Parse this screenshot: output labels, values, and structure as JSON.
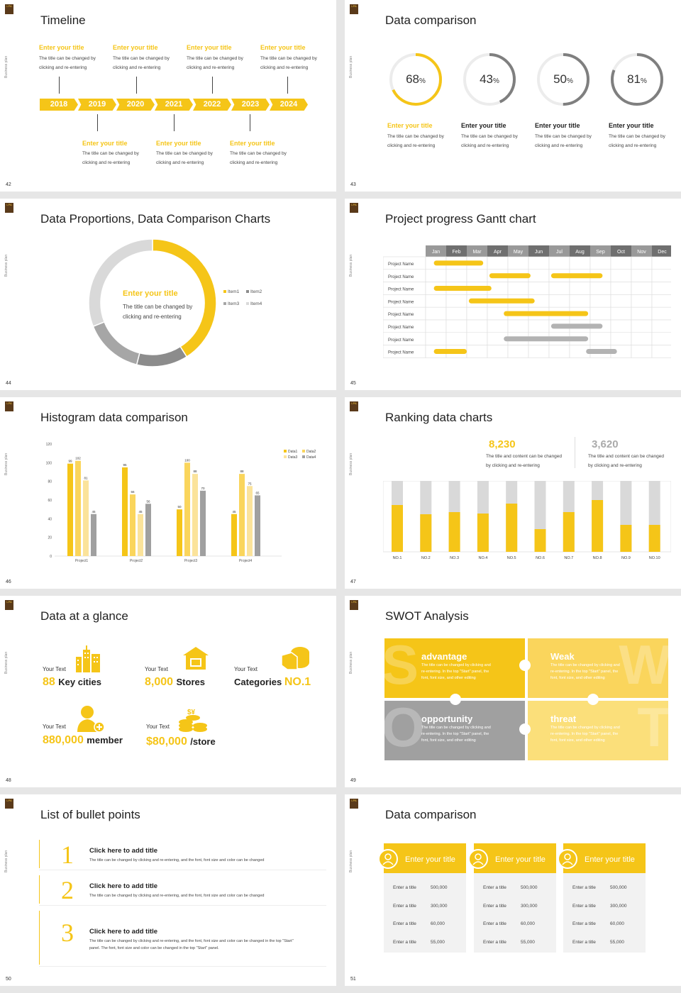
{
  "slides": [
    {
      "num": "42",
      "title": "Timeline"
    },
    {
      "num": "43",
      "title": "Data comparison"
    },
    {
      "num": "44",
      "title": "Data Proportions, Data Comparison Charts"
    },
    {
      "num": "45",
      "title": "Project progress Gantt chart"
    },
    {
      "num": "46",
      "title": "Histogram data comparison"
    },
    {
      "num": "47",
      "title": "Ranking data charts"
    },
    {
      "num": "48",
      "title": "Data at a glance"
    },
    {
      "num": "49",
      "title": "SWOT Analysis"
    },
    {
      "num": "50",
      "title": "List of bullet points"
    },
    {
      "num": "51",
      "title": "Data comparison"
    }
  ],
  "common": {
    "side_label": "Business plan",
    "logo": "LPA"
  },
  "timeline": {
    "years": [
      "2018",
      "2019",
      "2020",
      "2021",
      "2022",
      "2023",
      "2024"
    ],
    "item_title": "Enter your title",
    "item_text_1": "The title can be changed by",
    "item_text_2": "clicking and re-entering"
  },
  "rings": {
    "values": [
      "68",
      "43",
      "50",
      "81"
    ],
    "unit": "%",
    "titles": [
      "Enter your title",
      "Enter your title",
      "Enter your title",
      "Enter your title"
    ],
    "text_1": "The title can be changed by",
    "text_2": "clicking and re-entering"
  },
  "donut": {
    "title": "Enter your title",
    "text_1": "The title can be changed by",
    "text_2": "clicking and re-entering",
    "legend": [
      "Item1",
      "Item2",
      "Item3",
      "Item4"
    ]
  },
  "gantt": {
    "months": [
      "Jan",
      "Feb",
      "Mar",
      "Apr",
      "May",
      "Jun",
      "Jul",
      "Aug",
      "Sep",
      "Oct",
      "Nov",
      "Dec"
    ],
    "row_label": "Project Name"
  },
  "histogram": {
    "legend": [
      "Data1",
      "Data2",
      "Data3",
      "Data4"
    ]
  },
  "ranking": {
    "v1": "8,230",
    "v2": "3,620",
    "text_1": "The title and content can be changed",
    "text_2": "by clicking and re-entering",
    "labels": [
      "NO.1",
      "NO.2",
      "NO.3",
      "NO.4",
      "NO.5",
      "NO.6",
      "NO.7",
      "NO.8",
      "NO.9",
      "NO.10"
    ]
  },
  "glance": {
    "your_text": "Your Text",
    "i1_num": "88",
    "i1_unit": "Key cities",
    "i2_num": "8,000",
    "i2_unit": "Stores",
    "i3_pre": "Categories",
    "i3_num": "NO.1",
    "i4_num": "880,000",
    "i4_unit": "member",
    "i5_num": "$80,000",
    "i5_unit": "/store"
  },
  "swot": {
    "a": "advantage",
    "w": "Weak",
    "o": "opportunity",
    "t": "threat",
    "bl_s": "S",
    "bl_w": "W",
    "bl_o": "O",
    "bl_t": "T",
    "text_1": "The title can be changed by clicking and",
    "text_2": "re-entering. In the top \"Start\" panel, the",
    "text_3": "font, font size, and other editing"
  },
  "bullets": {
    "nums": [
      "1",
      "2",
      "3"
    ],
    "head": "Click here to add title",
    "text_1": "The title can be changed by clicking and re-entering, and the font, font size and color can be changed",
    "text_3a": "The title can be changed by clicking and re-entering, and the font, font size and color can be changed in the top \"Start\"",
    "text_3b": "panel. The font, font size and color can be changed in the top \"Start\" panel."
  },
  "cards": {
    "title": "Enter your title",
    "row_label": "Enter a title",
    "values": [
      "500,000",
      "300,000",
      "60,000",
      "55,000"
    ]
  },
  "chart_data": [
    {
      "type": "bar",
      "title": "Histogram data comparison",
      "categories": [
        "Project1",
        "Project2",
        "Project3",
        "Project4"
      ],
      "series": [
        {
          "name": "Data1",
          "values": [
            99,
            95,
            50,
            45
          ]
        },
        {
          "name": "Data2",
          "values": [
            102,
            66,
            100,
            88
          ]
        },
        {
          "name": "Data3",
          "values": [
            81,
            45,
            88,
            75
          ]
        },
        {
          "name": "Data4",
          "values": [
            45,
            56,
            70,
            65
          ]
        }
      ],
      "ylim": [
        0,
        120
      ],
      "yticks": [
        "0",
        "20",
        "40",
        "60",
        "80",
        "100",
        "120"
      ]
    },
    {
      "type": "pie",
      "title": "",
      "categories": [
        "Item1",
        "Item2",
        "Item3",
        "Item4"
      ],
      "values": [
        41,
        13,
        15,
        31
      ],
      "colors": [
        "#f5c518",
        "#8c8c8c",
        "#a6a6a6",
        "#d9d9d9"
      ]
    },
    {
      "type": "bar",
      "categories": [
        "NO.1",
        "NO.2",
        "NO.3",
        "NO.4",
        "NO.5",
        "NO.6",
        "NO.7",
        "NO.8",
        "NO.9",
        "NO.10"
      ],
      "values": [
        66,
        53,
        56,
        54,
        68,
        32,
        56,
        73,
        38,
        38
      ]
    },
    {
      "type": "bar",
      "categories": [
        "Jan",
        "Feb",
        "Mar",
        "Apr",
        "May",
        "Jun",
        "Jul",
        "Aug",
        "Sep",
        "Oct",
        "Nov",
        "Dec"
      ],
      "tasks": [
        {
          "start": 0.4,
          "end": 2.8,
          "color": "#f5c518"
        },
        {
          "start": 3.1,
          "end": 5.1,
          "color": "#f5c518"
        },
        {
          "start": 6.1,
          "end": 8.6,
          "color": "#f5c518"
        },
        {
          "start": 0.4,
          "end": 3.2,
          "color": "#f5c518"
        },
        {
          "start": 2.1,
          "end": 5.3,
          "color": "#f5c518"
        },
        {
          "start": 3.8,
          "end": 7.9,
          "color": "#f5c518"
        },
        {
          "start": 6.1,
          "end": 8.6,
          "color": "#b3b3b3"
        },
        {
          "start": 3.8,
          "end": 7.9,
          "color": "#b3b3b3"
        },
        {
          "start": 0.4,
          "end": 2.0,
          "color": "#f5c518"
        },
        {
          "start": 7.8,
          "end": 9.3,
          "color": "#b3b3b3"
        }
      ]
    }
  ]
}
